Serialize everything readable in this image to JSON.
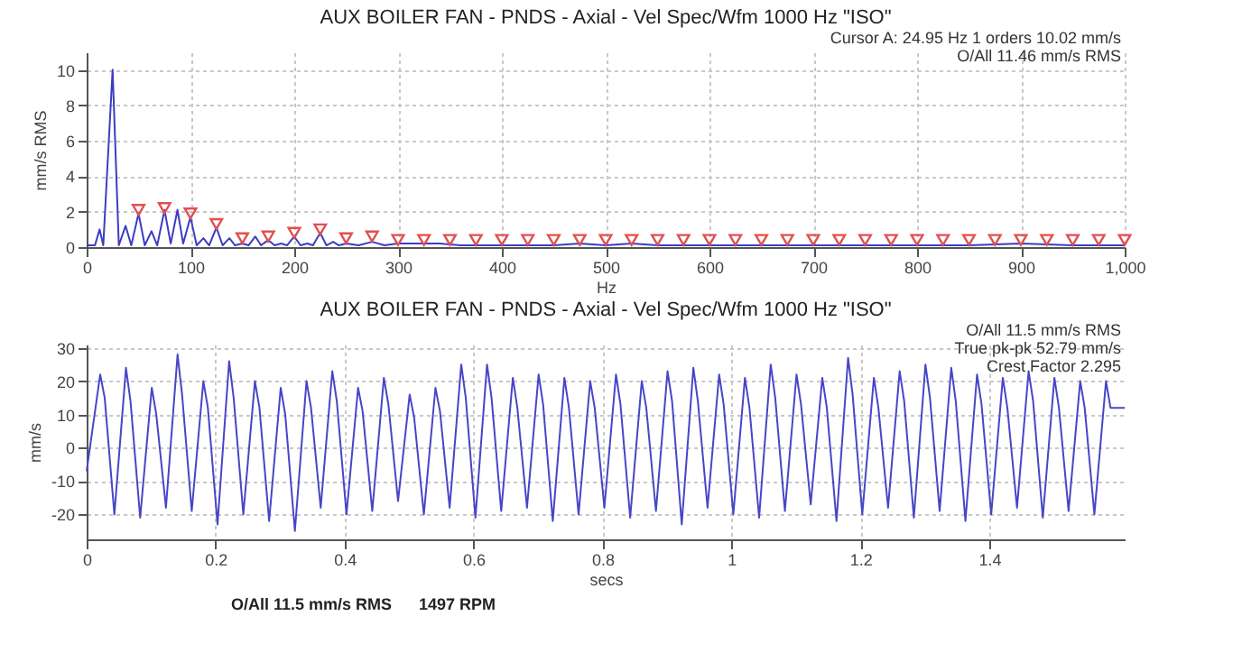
{
  "chart_data": [
    {
      "type": "line",
      "title": "AUX BOILER FAN - PNDS - Axial - Vel Spec/Wfm 1000 Hz \"ISO\"",
      "xlabel": "Hz",
      "ylabel": "mm/s RMS",
      "annotations": [
        "Cursor A:    24.95 Hz        1 orders        10.02 mm/s",
        "O/All 11.46 mm/s RMS"
      ],
      "xlim": [
        0,
        1000
      ],
      "xticks": [
        0,
        100,
        200,
        300,
        400,
        500,
        600,
        700,
        800,
        900,
        {
          "value": 1000,
          "label": "1,000"
        }
      ],
      "ylim": [
        0,
        11
      ],
      "yticks": [
        0,
        2,
        4,
        6,
        8,
        10
      ],
      "grid": true,
      "series": [
        {
          "type": "line",
          "color": "#3c3cc4",
          "x": [
            0,
            8,
            12.5,
            16,
            25,
            31,
            37.5,
            43,
            50,
            56,
            62.5,
            68,
            75,
            81,
            87.5,
            93,
            100,
            106,
            112.5,
            118,
            125,
            131,
            137.5,
            143,
            150,
            156,
            162.5,
            168,
            175,
            181,
            187.5,
            193,
            200,
            206,
            212.5,
            218,
            225,
            231,
            237.5,
            243,
            250,
            262,
            275,
            287,
            300,
            340,
            360,
            400,
            450,
            475,
            500,
            525,
            550,
            600,
            650,
            700,
            750,
            800,
            850,
            900,
            950,
            1000
          ],
          "values": [
            0.1,
            0.1,
            1.0,
            0.1,
            10.02,
            0.1,
            1.2,
            0.1,
            1.9,
            0.1,
            0.9,
            0.1,
            2.1,
            0.2,
            2.1,
            0.2,
            1.7,
            0.1,
            0.5,
            0.1,
            1.1,
            0.1,
            0.5,
            0.1,
            0.2,
            0.1,
            0.6,
            0.1,
            0.4,
            0.1,
            0.2,
            0.1,
            0.6,
            0.1,
            0.2,
            0.1,
            0.8,
            0.1,
            0.3,
            0.1,
            0.2,
            0.1,
            0.3,
            0.1,
            0.2,
            0.2,
            0.1,
            0.1,
            0.1,
            0.2,
            0.1,
            0.2,
            0.1,
            0.1,
            0.1,
            0.1,
            0.1,
            0.1,
            0.1,
            0.2,
            0.1,
            0.1
          ]
        },
        {
          "type": "scatter",
          "color": "#e05050",
          "marker": "triangle",
          "x": [
            50,
            75,
            100,
            125,
            150,
            175,
            200,
            225,
            250,
            275,
            300,
            325,
            350,
            375,
            400,
            425,
            450,
            475,
            500,
            525,
            550,
            575,
            600,
            625,
            650,
            675,
            700,
            725,
            750,
            775,
            800,
            825,
            850,
            875,
            900,
            925,
            950,
            975,
            1000
          ],
          "values": [
            2.1,
            2.2,
            1.9,
            1.3,
            0.5,
            0.6,
            0.8,
            1.0,
            0.5,
            0.6,
            0.4,
            0.4,
            0.4,
            0.4,
            0.4,
            0.4,
            0.4,
            0.4,
            0.4,
            0.4,
            0.4,
            0.4,
            0.4,
            0.4,
            0.4,
            0.4,
            0.4,
            0.4,
            0.4,
            0.4,
            0.4,
            0.4,
            0.4,
            0.4,
            0.4,
            0.4,
            0.4,
            0.4,
            0.4
          ]
        }
      ]
    },
    {
      "type": "line",
      "title": "AUX BOILER FAN - PNDS - Axial - Vel Spec/Wfm 1000 Hz \"ISO\"",
      "xlabel": "secs",
      "ylabel": "mm/s",
      "annotations": [
        "O/All 11.5 mm/s RMS",
        "True pk-pk 52.79 mm/s",
        "Crest Factor 2.295"
      ],
      "xlim": [
        0,
        1.61
      ],
      "xticks": [
        0,
        0.2,
        0.4,
        0.6,
        0.8,
        1,
        1.2,
        1.4
      ],
      "ylim": [
        -27.5,
        31
      ],
      "yticks": [
        -20,
        -10,
        0,
        10,
        20,
        30
      ],
      "grid": true,
      "series": [
        {
          "type": "line",
          "color": "#4646c8",
          "x": [
            0,
            0.021,
            0.028,
            0.043,
            0.061,
            0.068,
            0.083,
            0.101,
            0.108,
            0.123,
            0.141,
            0.148,
            0.163,
            0.181,
            0.188,
            0.203,
            0.221,
            0.228,
            0.243,
            0.261,
            0.268,
            0.283,
            0.301,
            0.308,
            0.323,
            0.341,
            0.348,
            0.363,
            0.381,
            0.388,
            0.403,
            0.421,
            0.428,
            0.443,
            0.461,
            0.468,
            0.483,
            0.501,
            0.508,
            0.523,
            0.541,
            0.548,
            0.563,
            0.581,
            0.588,
            0.603,
            0.621,
            0.628,
            0.643,
            0.661,
            0.668,
            0.683,
            0.701,
            0.708,
            0.723,
            0.741,
            0.748,
            0.763,
            0.781,
            0.788,
            0.803,
            0.821,
            0.828,
            0.843,
            0.861,
            0.868,
            0.883,
            0.901,
            0.908,
            0.923,
            0.941,
            0.948,
            0.963,
            0.981,
            0.988,
            1.003,
            1.021,
            1.028,
            1.043,
            1.061,
            1.068,
            1.083,
            1.101,
            1.108,
            1.123,
            1.141,
            1.148,
            1.163,
            1.181,
            1.188,
            1.203,
            1.221,
            1.228,
            1.243,
            1.261,
            1.268,
            1.283,
            1.301,
            1.308,
            1.323,
            1.341,
            1.348,
            1.363,
            1.381,
            1.388,
            1.403,
            1.421,
            1.428,
            1.443,
            1.461,
            1.468,
            1.483,
            1.501,
            1.508,
            1.523,
            1.541,
            1.548,
            1.563,
            1.581,
            1.588,
            1.61
          ],
          "values": [
            -7,
            22,
            15,
            -20,
            24,
            14,
            -21,
            18,
            10,
            -18,
            28,
            16,
            -19,
            20,
            12,
            -23,
            26,
            15,
            -20,
            20,
            12,
            -22,
            18,
            10,
            -25,
            20,
            12,
            -18,
            23,
            14,
            -20,
            18,
            11,
            -19,
            21,
            13,
            -16,
            16,
            9,
            -20,
            18,
            11,
            -18,
            25,
            15,
            -21,
            25,
            15,
            -19,
            21,
            12,
            -18,
            22,
            13,
            -22,
            21,
            12,
            -20,
            20,
            12,
            -18,
            22,
            13,
            -21,
            20,
            12,
            -19,
            23,
            14,
            -23,
            24,
            14,
            -18,
            22,
            13,
            -20,
            21,
            12,
            -21,
            25,
            15,
            -19,
            22,
            13,
            -17,
            21,
            12,
            -22,
            27,
            16,
            -20,
            21,
            12,
            -18,
            23,
            14,
            -21,
            25,
            15,
            -19,
            24,
            14,
            -22,
            22,
            13,
            -20,
            21,
            12,
            -18,
            23,
            14,
            -21,
            21,
            12,
            -19,
            20,
            12,
            -20,
            20,
            12,
            12
          ]
        }
      ]
    },
    {
      "type": "other",
      "annotations": [
        "O/All 11.5 mm/s RMS",
        "1497 RPM"
      ]
    }
  ]
}
